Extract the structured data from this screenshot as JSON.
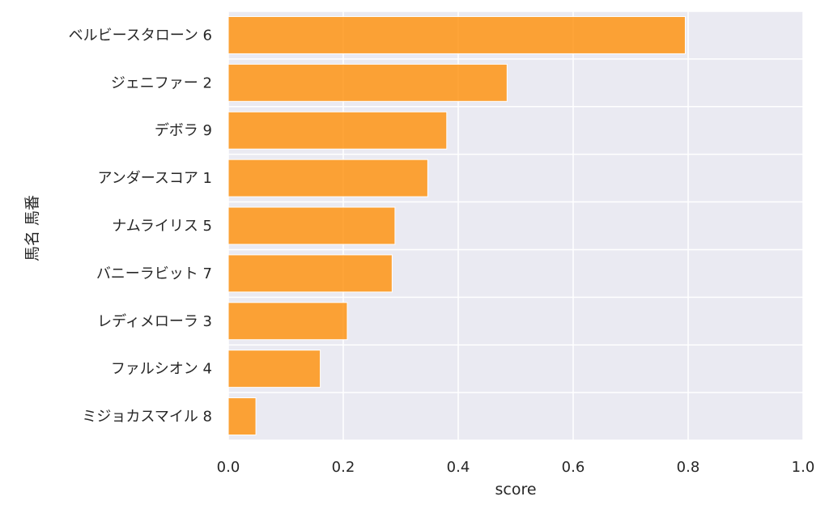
{
  "chart_data": {
    "type": "bar",
    "orientation": "horizontal",
    "categories": [
      "ベルビースタローン 6",
      "ジェニファー 2",
      "デボラ 9",
      "アンダースコア 1",
      "ナムライリス 5",
      "バニーラビット 7",
      "レディメローラ 3",
      "ファルシオン 4",
      "ミジョカスマイル 8"
    ],
    "values": [
      0.795,
      0.485,
      0.38,
      0.347,
      0.29,
      0.285,
      0.207,
      0.16,
      0.048
    ],
    "xlabel": "score",
    "ylabel": "馬名 馬番",
    "xlim": [
      0.0,
      1.0
    ],
    "xticks": [
      "0.0",
      "0.2",
      "0.4",
      "0.6",
      "0.8",
      "1.0"
    ],
    "grid": true,
    "bar_color": "#ff8c00",
    "background_color": "#eaeaf2"
  }
}
